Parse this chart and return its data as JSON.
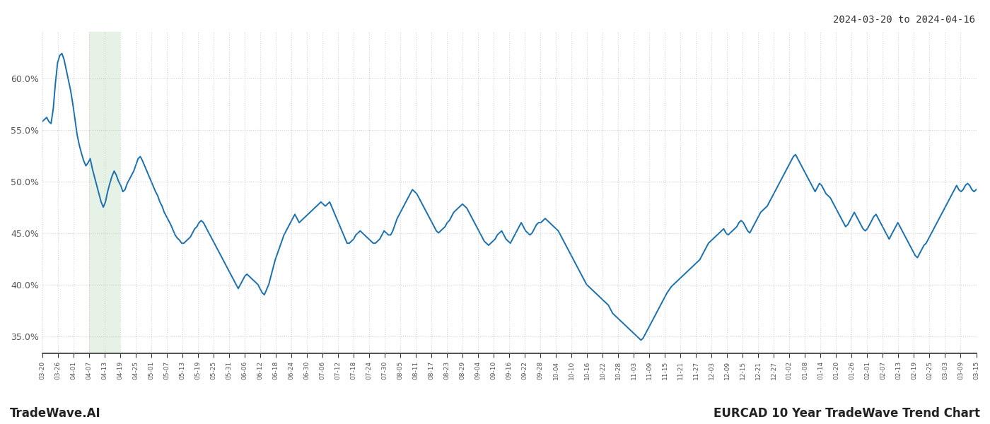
{
  "title_top_right": "2024-03-20 to 2024-04-16",
  "title_bottom_left": "TradeWave.AI",
  "title_bottom_right": "EURCAD 10 Year TradeWave Trend Chart",
  "background_color": "#ffffff",
  "line_color": "#1a6faf",
  "line_width": 1.4,
  "shade_color": "#d6ead6",
  "shade_alpha": 0.6,
  "ylim": [
    0.333,
    0.645
  ],
  "yticks": [
    0.35,
    0.4,
    0.45,
    0.5,
    0.55,
    0.6
  ],
  "ytick_labels": [
    "35.0%",
    "40.0%",
    "45.0%",
    "50.0%",
    "55.0%",
    "60.0%"
  ],
  "grid_color": "#aaaaaa",
  "grid_alpha": 0.5,
  "grid_linestyle": ":",
  "x_labels": [
    "03-20",
    "03-26",
    "04-01",
    "04-07",
    "04-13",
    "04-19",
    "04-25",
    "05-01",
    "05-07",
    "05-13",
    "05-19",
    "05-25",
    "05-31",
    "06-06",
    "06-12",
    "06-18",
    "06-24",
    "06-30",
    "07-06",
    "07-12",
    "07-18",
    "07-24",
    "07-30",
    "08-05",
    "08-11",
    "08-17",
    "08-23",
    "08-29",
    "09-04",
    "09-10",
    "09-16",
    "09-22",
    "09-28",
    "10-04",
    "10-10",
    "10-16",
    "10-22",
    "10-28",
    "11-03",
    "11-09",
    "11-15",
    "11-21",
    "11-27",
    "12-03",
    "12-09",
    "12-15",
    "12-21",
    "12-27",
    "01-02",
    "01-08",
    "01-14",
    "01-20",
    "01-26",
    "02-01",
    "02-07",
    "02-13",
    "02-19",
    "02-25",
    "03-03",
    "03-09",
    "03-15"
  ],
  "shade_start_label": "04-07",
  "shade_end_label": "04-19",
  "values": [
    0.558,
    0.56,
    0.562,
    0.558,
    0.556,
    0.57,
    0.595,
    0.615,
    0.622,
    0.624,
    0.618,
    0.608,
    0.598,
    0.588,
    0.575,
    0.56,
    0.545,
    0.535,
    0.527,
    0.52,
    0.515,
    0.518,
    0.522,
    0.512,
    0.504,
    0.496,
    0.488,
    0.48,
    0.475,
    0.48,
    0.49,
    0.498,
    0.505,
    0.51,
    0.506,
    0.5,
    0.496,
    0.49,
    0.492,
    0.498,
    0.502,
    0.506,
    0.51,
    0.516,
    0.522,
    0.524,
    0.52,
    0.515,
    0.51,
    0.505,
    0.5,
    0.495,
    0.49,
    0.486,
    0.48,
    0.476,
    0.47,
    0.466,
    0.462,
    0.458,
    0.453,
    0.448,
    0.445,
    0.443,
    0.44,
    0.44,
    0.442,
    0.444,
    0.446,
    0.45,
    0.454,
    0.456,
    0.46,
    0.462,
    0.46,
    0.456,
    0.452,
    0.448,
    0.444,
    0.44,
    0.436,
    0.432,
    0.428,
    0.424,
    0.42,
    0.416,
    0.412,
    0.408,
    0.404,
    0.4,
    0.396,
    0.4,
    0.404,
    0.408,
    0.41,
    0.408,
    0.406,
    0.404,
    0.402,
    0.4,
    0.396,
    0.392,
    0.39,
    0.395,
    0.4,
    0.408,
    0.416,
    0.424,
    0.43,
    0.436,
    0.442,
    0.448,
    0.452,
    0.456,
    0.46,
    0.464,
    0.468,
    0.464,
    0.46,
    0.462,
    0.464,
    0.466,
    0.468,
    0.47,
    0.472,
    0.474,
    0.476,
    0.478,
    0.48,
    0.478,
    0.476,
    0.478,
    0.48,
    0.475,
    0.47,
    0.465,
    0.46,
    0.455,
    0.45,
    0.445,
    0.44,
    0.44,
    0.442,
    0.444,
    0.448,
    0.45,
    0.452,
    0.45,
    0.448,
    0.446,
    0.444,
    0.442,
    0.44,
    0.44,
    0.442,
    0.444,
    0.448,
    0.452,
    0.45,
    0.448,
    0.448,
    0.452,
    0.458,
    0.464,
    0.468,
    0.472,
    0.476,
    0.48,
    0.484,
    0.488,
    0.492,
    0.49,
    0.488,
    0.484,
    0.48,
    0.476,
    0.472,
    0.468,
    0.464,
    0.46,
    0.456,
    0.452,
    0.45,
    0.452,
    0.454,
    0.456,
    0.46,
    0.462,
    0.466,
    0.47,
    0.472,
    0.474,
    0.476,
    0.478,
    0.476,
    0.474,
    0.47,
    0.466,
    0.462,
    0.458,
    0.454,
    0.45,
    0.446,
    0.442,
    0.44,
    0.438,
    0.44,
    0.442,
    0.444,
    0.448,
    0.45,
    0.452,
    0.448,
    0.444,
    0.442,
    0.44,
    0.444,
    0.448,
    0.452,
    0.456,
    0.46,
    0.456,
    0.452,
    0.45,
    0.448,
    0.45,
    0.454,
    0.458,
    0.46,
    0.46,
    0.462,
    0.464,
    0.462,
    0.46,
    0.458,
    0.456,
    0.454,
    0.452,
    0.448,
    0.444,
    0.44,
    0.436,
    0.432,
    0.428,
    0.424,
    0.42,
    0.416,
    0.412,
    0.408,
    0.404,
    0.4,
    0.398,
    0.396,
    0.394,
    0.392,
    0.39,
    0.388,
    0.386,
    0.384,
    0.382,
    0.38,
    0.376,
    0.372,
    0.37,
    0.368,
    0.366,
    0.364,
    0.362,
    0.36,
    0.358,
    0.356,
    0.354,
    0.352,
    0.35,
    0.348,
    0.346,
    0.348,
    0.352,
    0.356,
    0.36,
    0.364,
    0.368,
    0.372,
    0.376,
    0.38,
    0.384,
    0.388,
    0.392,
    0.395,
    0.398,
    0.4,
    0.402,
    0.404,
    0.406,
    0.408,
    0.41,
    0.412,
    0.414,
    0.416,
    0.418,
    0.42,
    0.422,
    0.424,
    0.428,
    0.432,
    0.436,
    0.44,
    0.442,
    0.444,
    0.446,
    0.448,
    0.45,
    0.452,
    0.454,
    0.45,
    0.448,
    0.45,
    0.452,
    0.454,
    0.456,
    0.46,
    0.462,
    0.46,
    0.456,
    0.452,
    0.45,
    0.454,
    0.458,
    0.462,
    0.466,
    0.47,
    0.472,
    0.474,
    0.476,
    0.48,
    0.484,
    0.488,
    0.492,
    0.496,
    0.5,
    0.504,
    0.508,
    0.512,
    0.516,
    0.52,
    0.524,
    0.526,
    0.522,
    0.518,
    0.514,
    0.51,
    0.506,
    0.502,
    0.498,
    0.494,
    0.49,
    0.494,
    0.498,
    0.496,
    0.492,
    0.488,
    0.486,
    0.484,
    0.48,
    0.476,
    0.472,
    0.468,
    0.464,
    0.46,
    0.456,
    0.458,
    0.462,
    0.466,
    0.47,
    0.466,
    0.462,
    0.458,
    0.454,
    0.452,
    0.454,
    0.458,
    0.462,
    0.466,
    0.468,
    0.464,
    0.46,
    0.456,
    0.452,
    0.448,
    0.444,
    0.448,
    0.452,
    0.456,
    0.46,
    0.456,
    0.452,
    0.448,
    0.444,
    0.44,
    0.436,
    0.432,
    0.428,
    0.426,
    0.43,
    0.434,
    0.438,
    0.44,
    0.444,
    0.448,
    0.452,
    0.456,
    0.46,
    0.464,
    0.468,
    0.472,
    0.476,
    0.48,
    0.484,
    0.488,
    0.492,
    0.496,
    0.492,
    0.49,
    0.492,
    0.496,
    0.498,
    0.496,
    0.492,
    0.49,
    0.492
  ]
}
